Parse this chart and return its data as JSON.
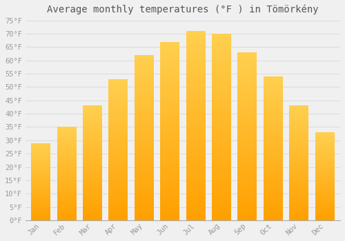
{
  "title": "Average monthly temperatures (°F ) in Tömörkény",
  "months": [
    "Jan",
    "Feb",
    "Mar",
    "Apr",
    "May",
    "Jun",
    "Jul",
    "Aug",
    "Sep",
    "Oct",
    "Nov",
    "Dec"
  ],
  "values": [
    29,
    35,
    43,
    53,
    62,
    67,
    71,
    70,
    63,
    54,
    43,
    33
  ],
  "bar_color_top": "#FFD050",
  "bar_color_bottom": "#FFA000",
  "background_color": "#F0F0F0",
  "grid_color": "#DDDDDD",
  "text_color": "#999999",
  "ylim": [
    0,
    75
  ],
  "yticks": [
    0,
    5,
    10,
    15,
    20,
    25,
    30,
    35,
    40,
    45,
    50,
    55,
    60,
    65,
    70,
    75
  ],
  "title_fontsize": 10,
  "tick_fontsize": 7.5,
  "font_family": "monospace",
  "bar_width": 0.75
}
